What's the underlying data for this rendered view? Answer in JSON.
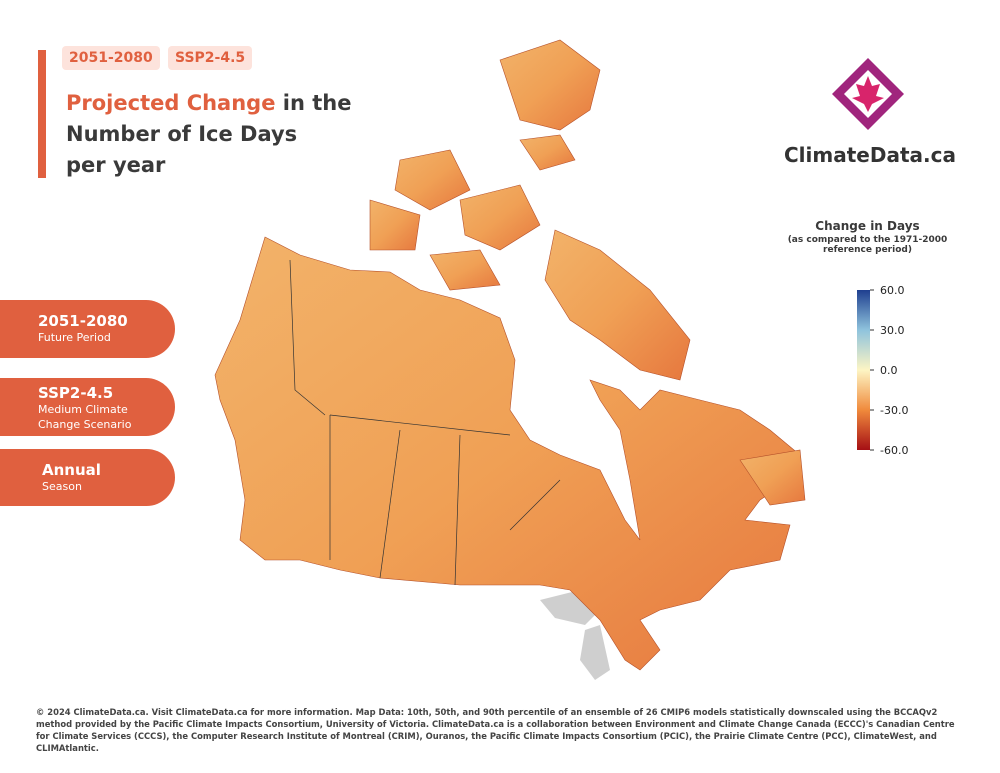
{
  "header": {
    "tags": [
      "2051-2080",
      "SSP2-4.5"
    ],
    "title": {
      "highlight": "Projected Change",
      "lines": [
        "in the",
        "Number of Ice Days",
        "per year"
      ]
    }
  },
  "logo": {
    "text": "ClimateData.ca"
  },
  "cards": [
    {
      "title": "2051-2080",
      "subtitle": [
        "Future Period"
      ]
    },
    {
      "title": "SSP2-4.5",
      "subtitle": [
        "Medium Climate",
        "Change Scenario"
      ]
    },
    {
      "title": "Annual",
      "subtitle": [
        "Season"
      ]
    }
  ],
  "legend": {
    "title": "Change in Days",
    "subtitle": [
      "(as compared to the 1971-2000",
      "reference period)"
    ],
    "range": [
      -60,
      60
    ],
    "ticks": [
      {
        "value": 60,
        "label": "60.0"
      },
      {
        "value": 30,
        "label": "30.0"
      },
      {
        "value": 0,
        "label": "0.0"
      },
      {
        "value": -30,
        "label": "-30.0"
      },
      {
        "value": -60,
        "label": "-60.0"
      }
    ]
  },
  "footer": "© 2024 ClimateData.ca. Visit ClimateData.ca for more information. Map Data: 10th, 50th, and 90th percentile of an ensemble of 26 CMIP6 models statistically downscaled using the BCCAQv2 method provided by the Pacific Climate Impacts Consortium, University of Victoria. ClimateData.ca is a collaboration between Environment and Climate Change Canada (ECCC)'s Canadian Centre for Climate Services (CCCS), the Computer Research Institute of Montreal (CRIM), Ouranos, the Pacific Climate Impacts Consortium (PCIC), the Prairie Climate Centre (PCC), ClimateWest, and CLIMAtlantic."
}
